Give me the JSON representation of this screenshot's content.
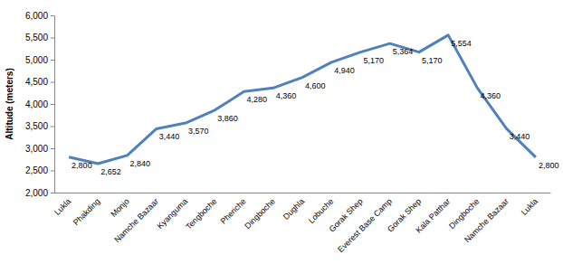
{
  "chart_data": {
    "type": "line",
    "y_label": "Altitude (meters)",
    "categories": [
      "Lukla",
      "Phakding",
      "Monjo",
      "Namche Bazaar",
      "Kyanguma",
      "Tengboche",
      "Pheriche",
      "Dingboche",
      "Dughla",
      "Lobuche",
      "Gorak Shep",
      "Everest Base Camp",
      "Gorak Shep",
      "Kala Patthar",
      "Dingboche",
      "Namche Bazaar",
      "Lukla"
    ],
    "values": [
      2800,
      2652,
      2840,
      3440,
      3570,
      3860,
      4280,
      4360,
      4600,
      4940,
      5170,
      5364,
      5170,
      5554,
      4360,
      3440,
      2800
    ],
    "value_labels": [
      "2,800",
      "2,652",
      "2,840",
      "3,440",
      "3,570",
      "3,860",
      "4,280",
      "4,360",
      "4,600",
      "4,940",
      "5,170",
      "5,364",
      "5,170",
      "5,554",
      "4,360",
      "3,440",
      "2,800"
    ],
    "data_labels": true,
    "color": "#4f81bd",
    "grid": false,
    "ylim": [
      2000,
      6000
    ],
    "yticks": [
      {
        "value": 2000,
        "label": "2,000"
      },
      {
        "value": 2500,
        "label": "2,500"
      },
      {
        "value": 3000,
        "label": "3,000"
      },
      {
        "value": 3500,
        "label": "3,500"
      },
      {
        "value": 4000,
        "label": "4,000"
      },
      {
        "value": 4500,
        "label": "4,500"
      },
      {
        "value": 5000,
        "label": "5,000"
      },
      {
        "value": 5500,
        "label": "5,500"
      },
      {
        "value": 6000,
        "label": "6,000"
      }
    ]
  }
}
